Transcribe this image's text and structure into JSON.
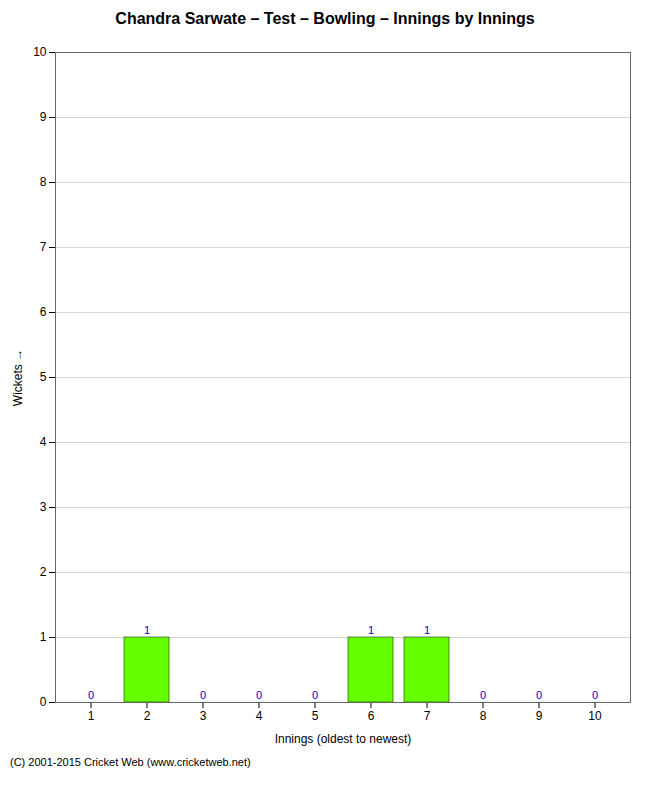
{
  "chart_data": {
    "type": "bar",
    "title": "Chandra Sarwate – Test – Bowling – Innings by Innings",
    "xlabel": "Innings (oldest to newest)",
    "ylabel": "Wickets",
    "categories": [
      "1",
      "2",
      "3",
      "4",
      "5",
      "6",
      "7",
      "8",
      "9",
      "10"
    ],
    "values": [
      0,
      1,
      0,
      0,
      0,
      1,
      1,
      0,
      0,
      0
    ],
    "color": "#66ff00",
    "ylim": [
      0,
      10
    ],
    "yticks": [
      0,
      1,
      2,
      3,
      4,
      5,
      6,
      7,
      8,
      9,
      10
    ],
    "grid": true,
    "data_labels": true,
    "annotations": [
      "(C) 2001-2015 Cricket Web (www.cricketweb.net)"
    ]
  }
}
